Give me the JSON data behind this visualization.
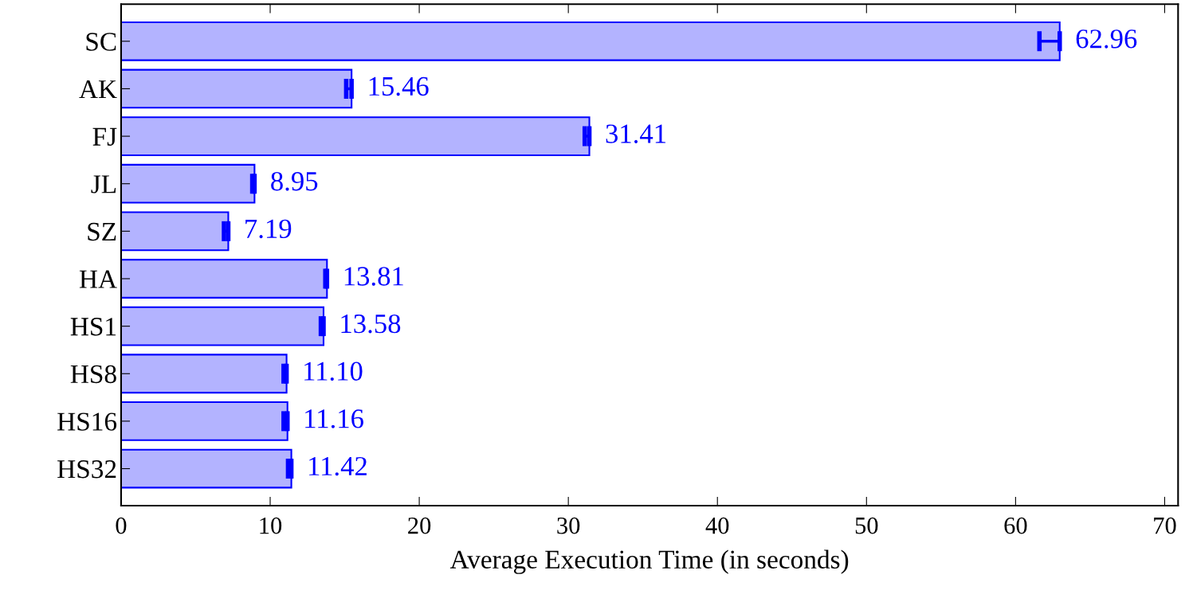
{
  "chart_data": {
    "type": "bar",
    "orientation": "horizontal",
    "xlabel": "Average Execution Time (in seconds)",
    "categories": [
      "SC",
      "AK",
      "FJ",
      "JL",
      "SZ",
      "HA",
      "HS1",
      "HS8",
      "HS16",
      "HS32"
    ],
    "values": [
      62.96,
      15.46,
      31.41,
      8.95,
      7.19,
      13.81,
      13.58,
      11.1,
      11.16,
      11.42
    ],
    "errors": [
      [
        61.6,
        62.96
      ],
      [
        15.1,
        15.46
      ],
      [
        31.1,
        31.41
      ],
      [
        8.8,
        8.95
      ],
      [
        6.9,
        7.19
      ],
      [
        13.7,
        13.81
      ],
      [
        13.4,
        13.58
      ],
      [
        10.9,
        11.1
      ],
      [
        10.9,
        11.16
      ],
      [
        11.2,
        11.42
      ]
    ],
    "color": "#b3b3ff",
    "value_labels": [
      "62.96",
      "15.46",
      "31.41",
      "8.95",
      "7.19",
      "13.81",
      "13.58",
      "11.10",
      "11.16",
      "11.42"
    ],
    "xlim": [
      0,
      70.9
    ],
    "xticks": [
      0,
      10,
      20,
      30,
      40,
      50,
      60,
      70
    ],
    "grid": false,
    "legend": false
  }
}
